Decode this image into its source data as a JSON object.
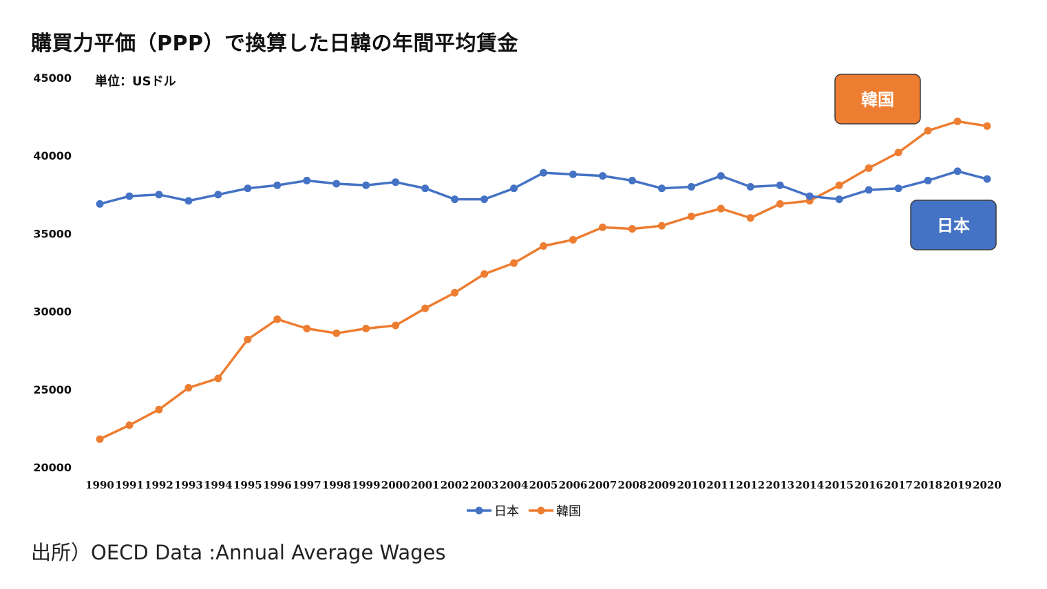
{
  "title": "購買力平価（PPP）で換算した日韓の年間平均賃金",
  "source": "出所）OECD Data :Annual Average Wages",
  "chart_data": {
    "type": "line",
    "unit_note": "単位：USドル",
    "ylim": [
      20000,
      45000
    ],
    "yticks": [
      "20000",
      "25000",
      "30000",
      "35000",
      "40000",
      "45000"
    ],
    "categories": [
      "1990",
      "1991",
      "1992",
      "1993",
      "1994",
      "1995",
      "1996",
      "1997",
      "1998",
      "1999",
      "2000",
      "2001",
      "2002",
      "2003",
      "2004",
      "2005",
      "2006",
      "2007",
      "2008",
      "2009",
      "2010",
      "2011",
      "2012",
      "2013",
      "2014",
      "2015",
      "2016",
      "2017",
      "2018",
      "2019",
      "2020"
    ],
    "grid": false,
    "legend_position": "bottom",
    "series": [
      {
        "name": "日本",
        "color": "#4472C4",
        "values": [
          36900,
          37400,
          37500,
          37100,
          37500,
          37900,
          38100,
          38400,
          38200,
          38100,
          38300,
          37900,
          37200,
          37200,
          37900,
          38900,
          38800,
          38700,
          38400,
          37900,
          38000,
          38700,
          38000,
          38100,
          37400,
          37200,
          37800,
          37900,
          38400,
          39000,
          38500
        ]
      },
      {
        "name": "韓国",
        "color": "#ED7D31",
        "values": [
          21800,
          22700,
          23700,
          25100,
          25700,
          28200,
          29500,
          28900,
          28600,
          28900,
          29100,
          30200,
          31200,
          32400,
          33100,
          34200,
          34600,
          35400,
          35300,
          35500,
          36100,
          36600,
          36000,
          36900,
          37100,
          38100,
          39200,
          40200,
          41600,
          42200,
          41900
        ]
      }
    ],
    "callouts": [
      {
        "series": "韓国",
        "label": "韓国",
        "color": "#ED7D31"
      },
      {
        "series": "日本",
        "label": "日本",
        "color": "#4472C4"
      }
    ]
  }
}
